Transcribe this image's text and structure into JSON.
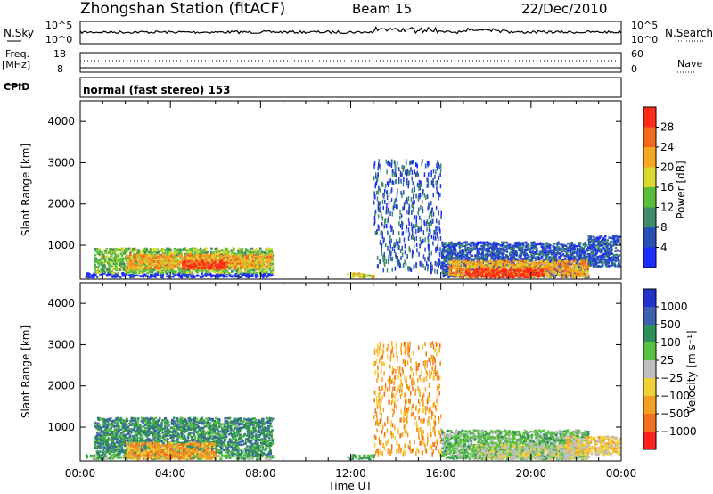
{
  "header": {
    "station": "Zhongshan Station (fitACF)",
    "beam": "Beam 15",
    "date": "22/Dec/2010"
  },
  "strips": {
    "nsky_label": "N.Sky",
    "nsky_ticks": [
      "10^5",
      "10^0"
    ],
    "nsearch_label": "N.Search",
    "nsearch_ticks": [
      "10^5",
      "10^0"
    ],
    "freq_label_1": "Freq.",
    "freq_label_2": "[MHz]",
    "freq_ticks": [
      "18",
      "8"
    ],
    "nave_label": "Nave",
    "nave_ticks": [
      "60",
      "0"
    ],
    "cpid_label": "CPID",
    "cpid_text": "normal (fast stereo) 153"
  },
  "chart_data": [
    {
      "type": "heatmap",
      "name": "power",
      "ylabel": "Slant Range [km]",
      "ylim": [
        180,
        4500
      ],
      "yticks": [
        "1000",
        "2000",
        "3000",
        "4000"
      ],
      "xlim_hours": [
        0,
        24
      ],
      "colorbar_label": "Power [dB]",
      "colorbar_ticks": [
        "4",
        "8",
        "12",
        "16",
        "20",
        "24",
        "28"
      ],
      "colorbar_colors": [
        "#1f2bff",
        "#2a4fb4",
        "#3f8c6a",
        "#5bbd3c",
        "#d8d830",
        "#f5a623",
        "#f26a1b",
        "#ff2a1a"
      ],
      "regions": [
        {
          "x": [
            0.2,
            8.5
          ],
          "y": [
            250,
            350
          ],
          "level": 0
        },
        {
          "x": [
            0.6,
            8.5
          ],
          "y": [
            350,
            950
          ],
          "level": 3
        },
        {
          "x": [
            2.0,
            8.5
          ],
          "y": [
            450,
            800
          ],
          "level": 5
        },
        {
          "x": [
            4.5,
            6.5
          ],
          "y": [
            450,
            650
          ],
          "level": 7
        },
        {
          "x": [
            11.8,
            13.0
          ],
          "y": [
            250,
            350
          ],
          "level": 4
        },
        {
          "x": [
            13.0,
            16.0
          ],
          "y": [
            400,
            3100
          ],
          "level": 1
        },
        {
          "x": [
            16.0,
            22.5
          ],
          "y": [
            250,
            1100
          ],
          "level": 1
        },
        {
          "x": [
            16.3,
            22.5
          ],
          "y": [
            250,
            650
          ],
          "level": 5
        },
        {
          "x": [
            17.0,
            20.5
          ],
          "y": [
            250,
            450
          ],
          "level": 7
        },
        {
          "x": [
            22.5,
            23.9
          ],
          "y": [
            500,
            1250
          ],
          "level": 1
        }
      ]
    },
    {
      "type": "heatmap",
      "name": "velocity",
      "ylabel": "Slant Range [km]",
      "ylim": [
        180,
        4500
      ],
      "yticks": [
        "1000",
        "2000",
        "3000",
        "4000"
      ],
      "xlim_hours": [
        0,
        24
      ],
      "colorbar_label": "Velocity [m s⁻¹]",
      "colorbar_ticks": [
        "1000",
        "500",
        "100",
        "25",
        "−25",
        "−100",
        "−500",
        "−1000"
      ],
      "colorbar_colors": [
        "#2233cc",
        "#3f5fb0",
        "#2f8f5a",
        "#5ac040",
        "#bfbfbf",
        "#f2d03a",
        "#f2a023",
        "#f07020",
        "#ff2020"
      ],
      "regions": [
        {
          "x": [
            0.2,
            8.5
          ],
          "y": [
            250,
            350
          ],
          "level": 3
        },
        {
          "x": [
            0.6,
            8.5
          ],
          "y": [
            350,
            1250
          ],
          "level": 2
        },
        {
          "x": [
            2.0,
            6.0
          ],
          "y": [
            250,
            650
          ],
          "level": 6
        },
        {
          "x": [
            11.8,
            13.0
          ],
          "y": [
            250,
            350
          ],
          "level": 3
        },
        {
          "x": [
            13.0,
            16.0
          ],
          "y": [
            400,
            3100
          ],
          "level": 6
        },
        {
          "x": [
            16.0,
            22.5
          ],
          "y": [
            250,
            950
          ],
          "level": 3
        },
        {
          "x": [
            17.5,
            22.5
          ],
          "y": [
            250,
            600
          ],
          "level": 4
        },
        {
          "x": [
            21.5,
            23.9
          ],
          "y": [
            350,
            800
          ],
          "level": 5
        }
      ]
    }
  ],
  "xaxis": {
    "ticks": [
      "00:00",
      "04:00",
      "08:00",
      "12:00",
      "16:00",
      "20:00",
      "00:00"
    ],
    "label": "Time UT"
  }
}
